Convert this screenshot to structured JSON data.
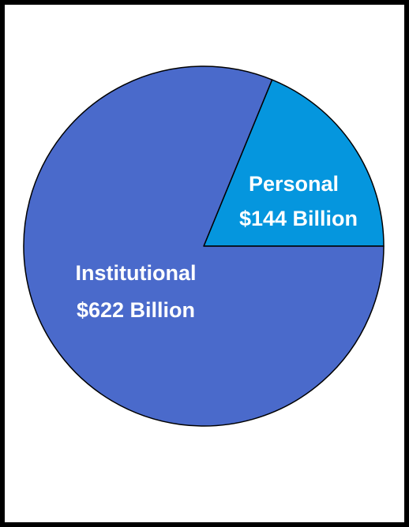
{
  "chart_data": {
    "type": "pie",
    "slices": [
      {
        "label": "Personal",
        "value_label": "$144 Billion",
        "value": 144,
        "color": "#0596de"
      },
      {
        "label": "Institutional",
        "value_label": "$622 Billion",
        "value": 622,
        "color": "#4a6acb"
      }
    ],
    "start_slice": "Personal",
    "outline_color": "#000000"
  }
}
